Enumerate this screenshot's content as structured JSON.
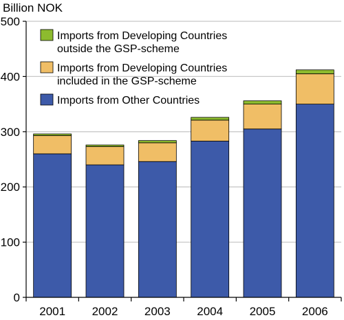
{
  "chart_data": {
    "type": "bar",
    "stacked": true,
    "unit_label": "Billion NOK",
    "title": "",
    "xlabel": "",
    "ylabel": "",
    "categories": [
      "2001",
      "2002",
      "2003",
      "2004",
      "2005",
      "2006"
    ],
    "ylim": [
      0,
      500
    ],
    "yticks": [
      0,
      100,
      200,
      300,
      400,
      500
    ],
    "grid": true,
    "legend_position": "top-left",
    "series": [
      {
        "name": "Imports from Other Countries",
        "color": "#3d5aa9",
        "values": [
          260,
          240,
          246,
          283,
          305,
          350
        ]
      },
      {
        "name": "Imports from Developing Countries included in the GSP-scheme",
        "color": "#f0be66",
        "values": [
          33,
          33,
          34,
          38,
          45,
          55
        ]
      },
      {
        "name": "Imports from Developing Countries outside the GSP-scheme",
        "color": "#8dbb2e",
        "values": [
          3,
          3,
          4,
          5,
          6,
          7
        ]
      }
    ],
    "legend": {
      "entries": [
        {
          "series": 2,
          "lines": [
            "Imports from Developing Countries",
            "outside the GSP-scheme"
          ]
        },
        {
          "series": 1,
          "lines": [
            "Imports from Developing Countries",
            "included in the GSP-scheme"
          ]
        },
        {
          "series": 0,
          "lines": [
            "Imports from Other Countries"
          ]
        }
      ]
    }
  }
}
